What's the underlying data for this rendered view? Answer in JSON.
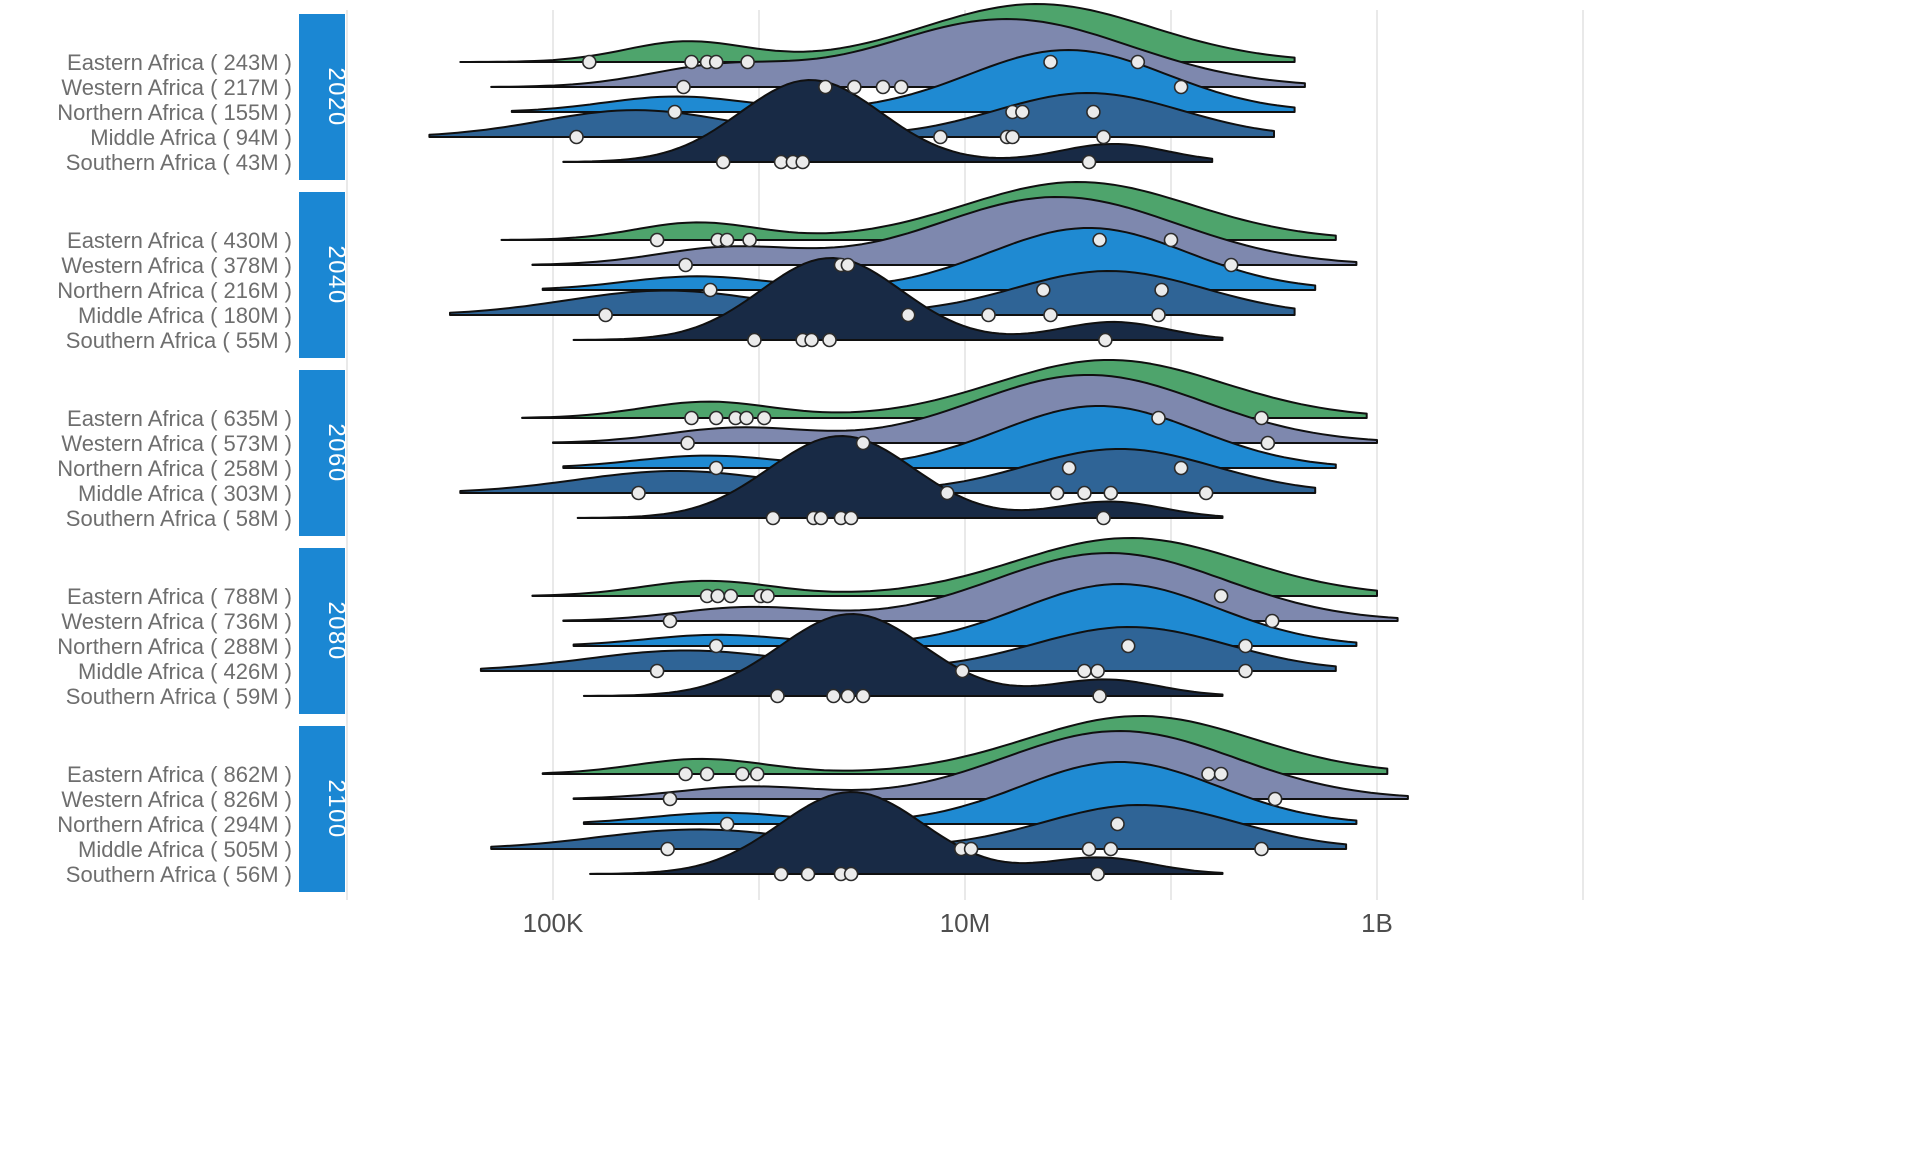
{
  "chart_data": {
    "type": "area",
    "subtype": "ridgeline-density-log-x",
    "title": "",
    "x_axis": {
      "scale": "log",
      "tick_labels": [
        "100K",
        "10M",
        "1B"
      ],
      "tick_values_millions": [
        0.1,
        10,
        1000
      ],
      "gridline_values_millions": [
        0.01,
        0.1,
        1,
        10,
        100,
        1000,
        10000
      ]
    },
    "colors": {
      "facet_strip": "#1b87d3",
      "facet_strip_text": "#ffffff",
      "label_text": "#6e6e6e",
      "tick_text": "#4e4e4e",
      "gridline": "#e9e9e9",
      "curve_stroke": "#101010",
      "dot_fill": "#ebebeb",
      "dot_stroke": "#2b2b2b",
      "background": "#ffffff"
    },
    "region_colors": {
      "Eastern Africa": "#4ea46c",
      "Western Africa": "#7e88ae",
      "Northern Africa": "#1f8ad2",
      "Middle Africa": "#2f6496",
      "Southern Africa": "#182a45"
    },
    "region_amplitudes": {
      "Eastern Africa": 58,
      "Western Africa": 68,
      "Northern Africa": 62,
      "Middle Africa": 44,
      "Southern Africa": 82
    },
    "groups": [
      {
        "year": "2020",
        "rows": [
          {
            "region": "Eastern Africa",
            "population": "243M",
            "label": "Eastern Africa ( 243M )",
            "dots_millions": [
              0.15,
              0.47,
              0.56,
              0.62,
              0.88,
              26,
              69
            ],
            "density_components": [
              [
                1.35,
                0.55,
                1.0
              ],
              [
                -0.35,
                0.3,
                0.35
              ]
            ],
            "density_range": [
              -1.45,
              2.6
            ]
          },
          {
            "region": "Western Africa",
            "population": "217M",
            "label": "Western Africa ( 217M )",
            "dots_millions": [
              0.43,
              2.1,
              2.9,
              4.0,
              4.9,
              112
            ],
            "density_components": [
              [
                1.2,
                0.6,
                1.0
              ],
              [
                -0.2,
                0.35,
                0.28
              ]
            ],
            "density_range": [
              -1.3,
              2.65
            ]
          },
          {
            "region": "Northern Africa",
            "population": "155M",
            "label": "Northern Africa ( 155M )",
            "dots_millions": [
              0.39,
              17,
              19,
              42
            ],
            "density_components": [
              [
                1.5,
                0.48,
                1.0
              ],
              [
                -0.4,
                0.35,
                0.25
              ]
            ],
            "density_range": [
              -1.2,
              2.6
            ]
          },
          {
            "region": "Middle Africa",
            "population": "94M",
            "label": "Middle Africa ( 94M )",
            "dots_millions": [
              0.13,
              7.6,
              16,
              17,
              47
            ],
            "density_components": [
              [
                1.6,
                0.45,
                0.9
              ],
              [
                -0.6,
                0.45,
                0.55
              ]
            ],
            "density_range": [
              -1.6,
              2.5
            ]
          },
          {
            "region": "Southern Africa",
            "population": "43M",
            "label": "Southern Africa ( 43M )",
            "dots_millions": [
              0.67,
              1.28,
              1.46,
              1.63,
              40
            ],
            "density_components": [
              [
                0.25,
                0.34,
                1.0
              ],
              [
                1.72,
                0.26,
                0.22
              ]
            ],
            "density_range": [
              -0.95,
              2.2
            ]
          }
        ]
      },
      {
        "year": "2040",
        "rows": [
          {
            "region": "Eastern Africa",
            "population": "430M",
            "label": "Eastern Africa ( 430M )",
            "dots_millions": [
              0.32,
              0.63,
              0.7,
              0.9,
              45,
              100
            ],
            "density_components": [
              [
                1.55,
                0.55,
                1.0
              ],
              [
                -0.3,
                0.3,
                0.3
              ]
            ],
            "density_range": [
              -1.25,
              2.8
            ]
          },
          {
            "region": "Western Africa",
            "population": "378M",
            "label": "Western Africa ( 378M )",
            "dots_millions": [
              0.44,
              2.5,
              2.7,
              196
            ],
            "density_components": [
              [
                1.45,
                0.58,
                1.0
              ],
              [
                -0.15,
                0.35,
                0.25
              ]
            ],
            "density_range": [
              -1.1,
              2.9
            ]
          },
          {
            "region": "Northern Africa",
            "population": "216M",
            "label": "Northern Africa ( 216M )",
            "dots_millions": [
              0.58,
              24,
              90
            ],
            "density_components": [
              [
                1.6,
                0.48,
                1.0
              ],
              [
                -0.3,
                0.35,
                0.22
              ]
            ],
            "density_range": [
              -1.05,
              2.7
            ]
          },
          {
            "region": "Middle Africa",
            "population": "180M",
            "label": "Middle Africa ( 180M )",
            "dots_millions": [
              0.18,
              5.3,
              13,
              26,
              87
            ],
            "density_components": [
              [
                1.7,
                0.46,
                0.9
              ],
              [
                -0.45,
                0.48,
                0.5
              ]
            ],
            "density_range": [
              -1.5,
              2.6
            ]
          },
          {
            "region": "Southern Africa",
            "population": "55M",
            "label": "Southern Africa ( 55M )",
            "dots_millions": [
              0.95,
              1.63,
              1.8,
              2.2,
              48
            ],
            "density_components": [
              [
                0.35,
                0.34,
                1.0
              ],
              [
                1.72,
                0.26,
                0.22
              ]
            ],
            "density_range": [
              -0.9,
              2.25
            ]
          }
        ]
      },
      {
        "year": "2060",
        "rows": [
          {
            "region": "Eastern Africa",
            "population": "635M",
            "label": "Eastern Africa ( 635M )",
            "dots_millions": [
              0.47,
              0.62,
              0.77,
              0.87,
              1.06,
              87,
              275
            ],
            "density_components": [
              [
                1.7,
                0.55,
                1.0
              ],
              [
                -0.25,
                0.32,
                0.28
              ]
            ],
            "density_range": [
              -1.15,
              2.95
            ]
          },
          {
            "region": "Western Africa",
            "population": "573M",
            "label": "Western Africa ( 573M )",
            "dots_millions": [
              0.45,
              3.2,
              295
            ],
            "density_components": [
              [
                1.6,
                0.56,
                1.0
              ],
              [
                -0.1,
                0.35,
                0.22
              ]
            ],
            "density_range": [
              -1.0,
              3.0
            ]
          },
          {
            "region": "Northern Africa",
            "population": "258M",
            "label": "Northern Africa ( 258M )",
            "dots_millions": [
              0.62,
              32,
              112
            ],
            "density_components": [
              [
                1.65,
                0.48,
                1.0
              ],
              [
                -0.25,
                0.35,
                0.2
              ]
            ],
            "density_range": [
              -0.95,
              2.8
            ]
          },
          {
            "region": "Middle Africa",
            "population": "303M",
            "label": "Middle Africa ( 303M )",
            "dots_millions": [
              0.26,
              8.2,
              28,
              38,
              51,
              148
            ],
            "density_components": [
              [
                1.75,
                0.46,
                0.9
              ],
              [
                -0.4,
                0.48,
                0.45
              ]
            ],
            "density_range": [
              -1.45,
              2.7
            ]
          },
          {
            "region": "Southern Africa",
            "population": "58M",
            "label": "Southern Africa ( 58M )",
            "dots_millions": [
              1.17,
              1.84,
              2.0,
              2.5,
              2.8,
              47
            ],
            "density_components": [
              [
                0.4,
                0.35,
                1.0
              ],
              [
                1.7,
                0.26,
                0.2
              ]
            ],
            "density_range": [
              -0.88,
              2.25
            ]
          }
        ]
      },
      {
        "year": "2080",
        "rows": [
          {
            "region": "Eastern Africa",
            "population": "788M",
            "label": "Eastern Africa ( 788M )",
            "dots_millions": [
              0.56,
              0.63,
              0.73,
              1.02,
              1.1,
              175
            ],
            "density_components": [
              [
                1.8,
                0.55,
                1.0
              ],
              [
                -0.25,
                0.32,
                0.26
              ]
            ],
            "density_range": [
              -1.1,
              3.0
            ]
          },
          {
            "region": "Western Africa",
            "population": "736M",
            "label": "Western Africa ( 736M )",
            "dots_millions": [
              0.37,
              310
            ],
            "density_components": [
              [
                1.7,
                0.56,
                1.0
              ],
              [
                -0.05,
                0.35,
                0.2
              ]
            ],
            "density_range": [
              -0.95,
              3.1
            ]
          },
          {
            "region": "Northern Africa",
            "population": "288M",
            "label": "Northern Africa ( 288M )",
            "dots_millions": [
              0.62,
              62,
              230
            ],
            "density_components": [
              [
                1.75,
                0.48,
                1.0
              ],
              [
                -0.2,
                0.35,
                0.18
              ]
            ],
            "density_range": [
              -0.9,
              2.9
            ]
          },
          {
            "region": "Middle Africa",
            "population": "426M",
            "label": "Middle Africa ( 426M )",
            "dots_millions": [
              0.32,
              9.7,
              38,
              44,
              230
            ],
            "density_components": [
              [
                1.8,
                0.47,
                0.9
              ],
              [
                -0.35,
                0.48,
                0.42
              ]
            ],
            "density_range": [
              -1.35,
              2.8
            ]
          },
          {
            "region": "Southern Africa",
            "population": "59M",
            "label": "Southern Africa ( 59M )",
            "dots_millions": [
              1.23,
              2.3,
              2.7,
              3.2,
              45
            ],
            "density_components": [
              [
                0.45,
                0.35,
                1.0
              ],
              [
                1.68,
                0.26,
                0.2
              ]
            ],
            "density_range": [
              -0.85,
              2.25
            ]
          }
        ]
      },
      {
        "year": "2100",
        "rows": [
          {
            "region": "Eastern Africa",
            "population": "862M",
            "label": "Eastern Africa ( 862M )",
            "dots_millions": [
              0.44,
              0.56,
              0.83,
              0.98,
              152,
              175
            ],
            "density_components": [
              [
                1.85,
                0.55,
                1.0
              ],
              [
                -0.28,
                0.32,
                0.26
              ]
            ],
            "density_range": [
              -1.05,
              3.05
            ]
          },
          {
            "region": "Western Africa",
            "population": "826M",
            "label": "Western Africa ( 826M )",
            "dots_millions": [
              0.37,
              320
            ],
            "density_components": [
              [
                1.75,
                0.56,
                1.0
              ],
              [
                -0.05,
                0.35,
                0.18
              ]
            ],
            "density_range": [
              -0.9,
              3.15
            ]
          },
          {
            "region": "Northern Africa",
            "population": "294M",
            "label": "Northern Africa ( 294M )",
            "dots_millions": [
              0.7,
              55
            ],
            "density_components": [
              [
                1.75,
                0.48,
                1.0
              ],
              [
                -0.18,
                0.35,
                0.18
              ]
            ],
            "density_range": [
              -0.85,
              2.9
            ]
          },
          {
            "region": "Middle Africa",
            "population": "505M",
            "label": "Middle Africa ( 505M )",
            "dots_millions": [
              0.36,
              9.6,
              10.7,
              40,
              51,
              275
            ],
            "density_components": [
              [
                1.85,
                0.47,
                0.9
              ],
              [
                -0.3,
                0.48,
                0.4
              ]
            ],
            "density_range": [
              -1.3,
              2.85
            ]
          },
          {
            "region": "Southern Africa",
            "population": "56M",
            "label": "Southern Africa ( 56M )",
            "dots_millions": [
              1.28,
              1.73,
              2.5,
              2.8,
              44
            ],
            "density_components": [
              [
                0.45,
                0.35,
                1.0
              ],
              [
                1.65,
                0.26,
                0.2
              ]
            ],
            "density_range": [
              -0.82,
              2.25
            ]
          }
        ]
      }
    ]
  }
}
